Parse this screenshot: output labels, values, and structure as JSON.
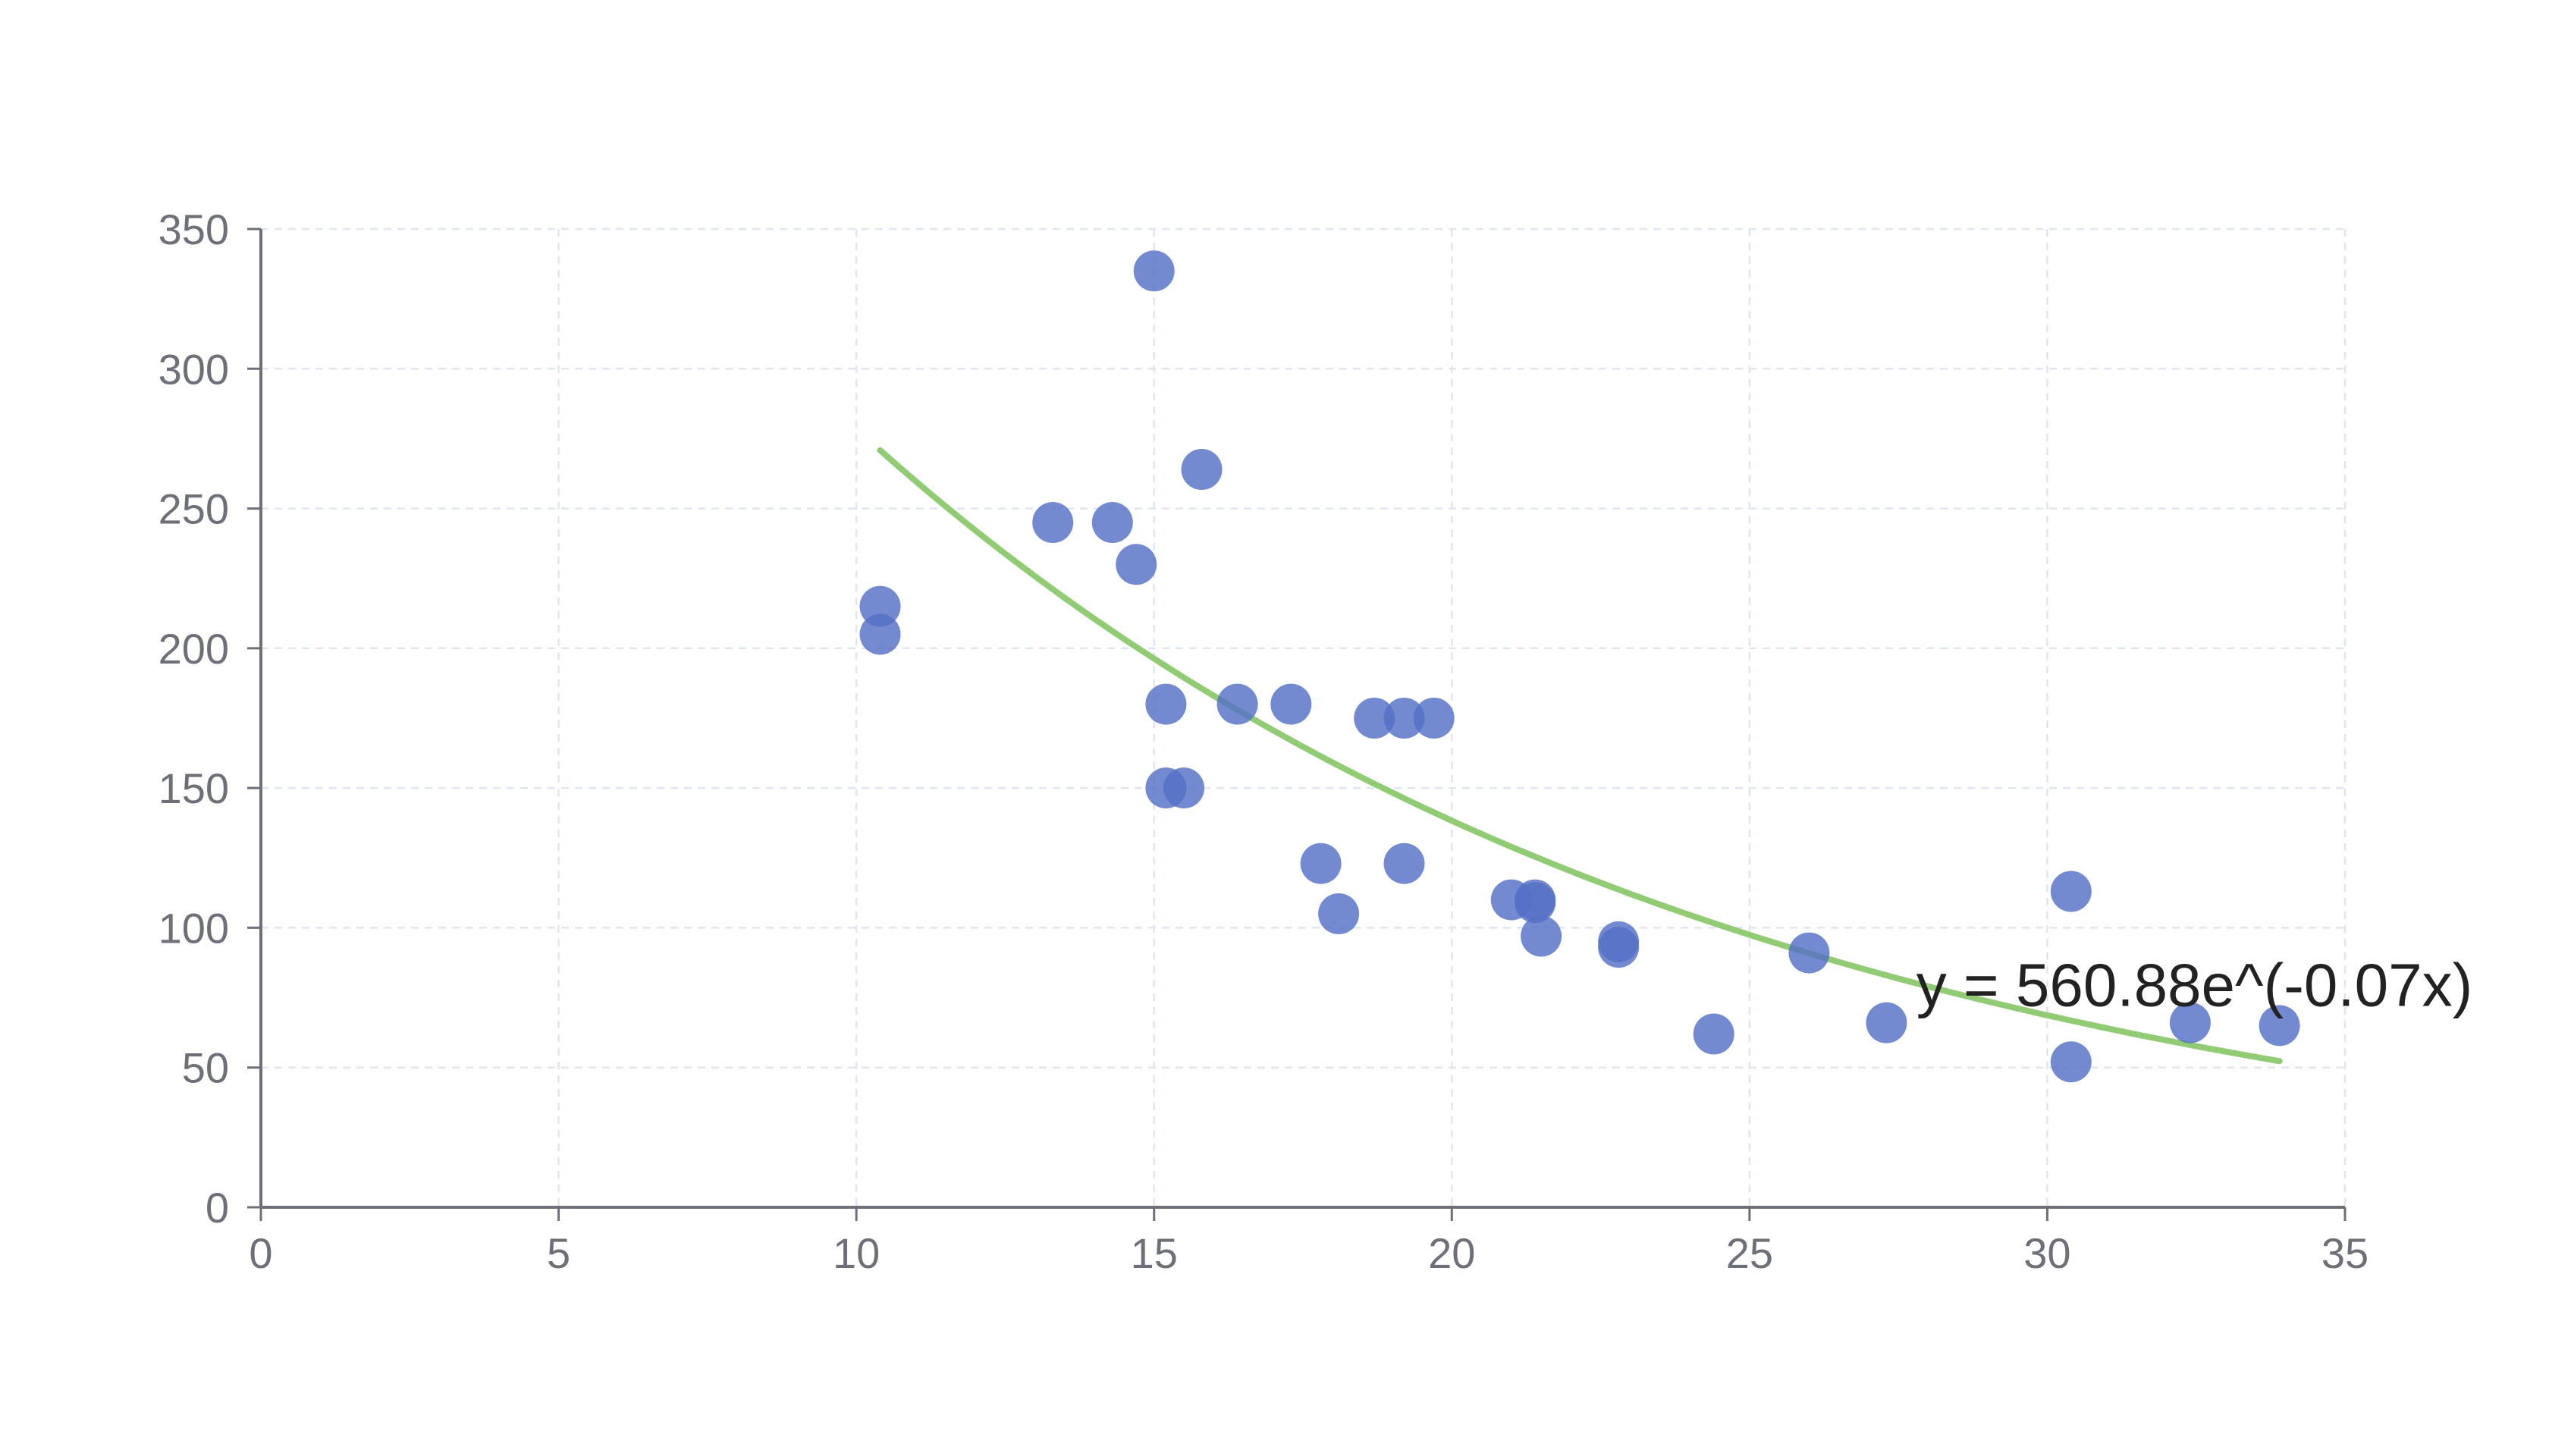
{
  "chart_data": {
    "type": "scatter",
    "xlim": [
      0,
      35
    ],
    "ylim": [
      0,
      350
    ],
    "x_ticks": [
      "0",
      "5",
      "10",
      "15",
      "20",
      "25",
      "30",
      "35"
    ],
    "y_ticks": [
      "0",
      "50",
      "100",
      "150",
      "200",
      "250",
      "300",
      "350"
    ],
    "grid": true,
    "points": [
      {
        "x": 10.4,
        "y": 215
      },
      {
        "x": 10.4,
        "y": 205
      },
      {
        "x": 13.3,
        "y": 245
      },
      {
        "x": 14.3,
        "y": 245
      },
      {
        "x": 14.7,
        "y": 230
      },
      {
        "x": 15.0,
        "y": 335
      },
      {
        "x": 15.8,
        "y": 264
      },
      {
        "x": 15.2,
        "y": 180
      },
      {
        "x": 16.4,
        "y": 180
      },
      {
        "x": 17.3,
        "y": 180
      },
      {
        "x": 15.2,
        "y": 150
      },
      {
        "x": 15.5,
        "y": 150
      },
      {
        "x": 18.7,
        "y": 175
      },
      {
        "x": 19.2,
        "y": 175
      },
      {
        "x": 19.7,
        "y": 175
      },
      {
        "x": 17.8,
        "y": 123
      },
      {
        "x": 19.2,
        "y": 123
      },
      {
        "x": 18.1,
        "y": 105
      },
      {
        "x": 21.0,
        "y": 110
      },
      {
        "x": 21.4,
        "y": 110
      },
      {
        "x": 21.4,
        "y": 109
      },
      {
        "x": 21.5,
        "y": 97
      },
      {
        "x": 22.8,
        "y": 95
      },
      {
        "x": 22.8,
        "y": 93
      },
      {
        "x": 24.4,
        "y": 62
      },
      {
        "x": 26.0,
        "y": 91
      },
      {
        "x": 27.3,
        "y": 66
      },
      {
        "x": 30.4,
        "y": 113
      },
      {
        "x": 30.4,
        "y": 52
      },
      {
        "x": 32.4,
        "y": 66
      },
      {
        "x": 33.9,
        "y": 65
      }
    ],
    "trendline": {
      "type": "exponential",
      "a": 560.88,
      "b": -0.07,
      "x_range": [
        10.4,
        33.9
      ],
      "label": "y = 560.88e^(-0.07x)",
      "label_anchor": {
        "x": 27.8,
        "y": 72
      }
    },
    "colors": {
      "points": "#5470c6",
      "trendline": "#91cc75",
      "axis": "#6e7079",
      "grid": "#e0e6f0",
      "label": "#222222"
    }
  }
}
